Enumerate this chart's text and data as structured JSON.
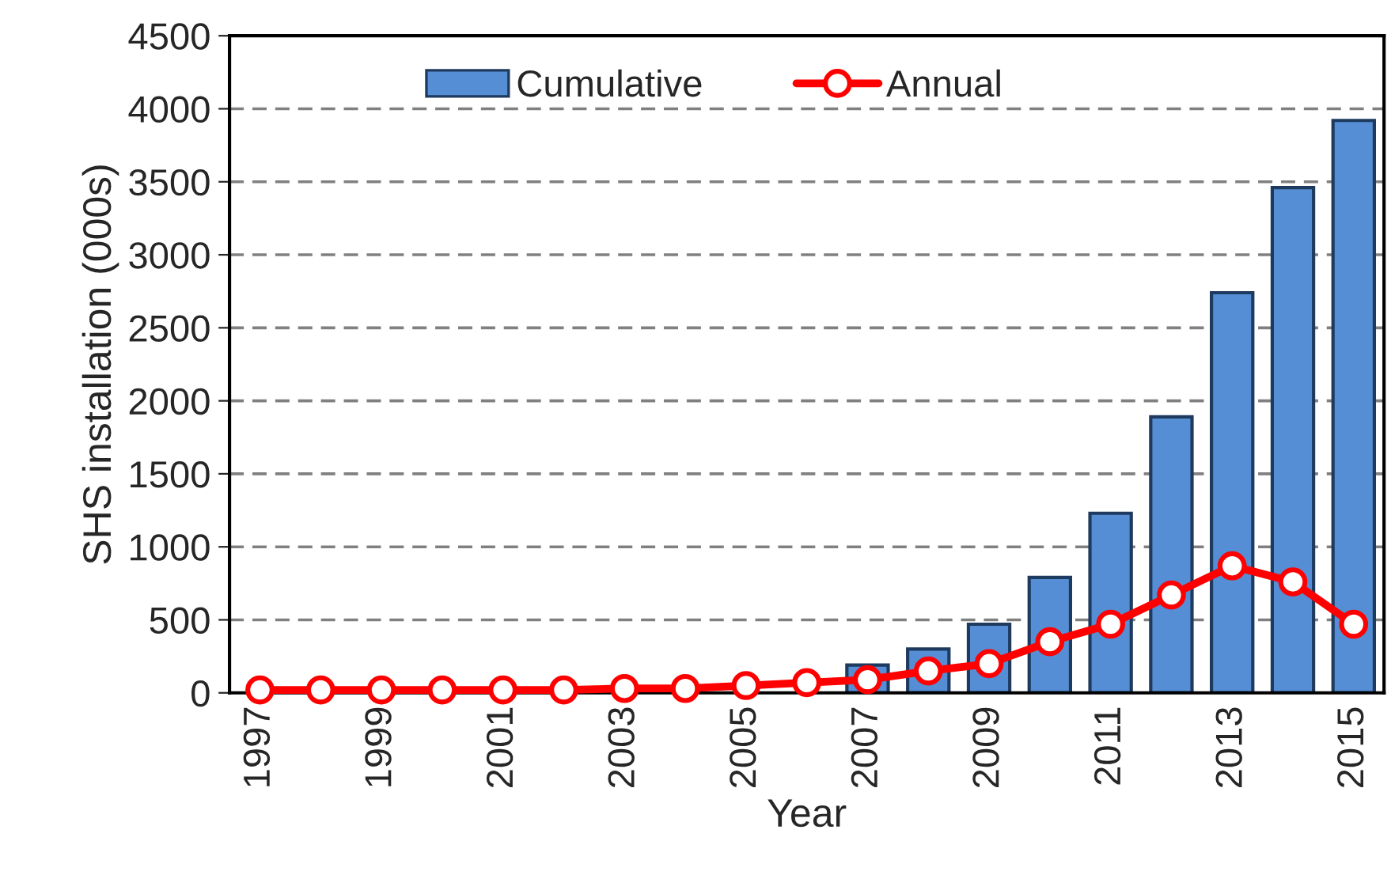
{
  "chart_data": {
    "type": "bar",
    "xlabel": "Year",
    "ylabel": "SHS installation (000s)",
    "categories": [
      "1997",
      null,
      "1999",
      null,
      "2001",
      null,
      "2003",
      null,
      "2005",
      null,
      "2007",
      null,
      "2009",
      null,
      "2011",
      null,
      "2013",
      null,
      "2015"
    ],
    "series": [
      {
        "name": "Cumulative",
        "color": "#558ed5",
        "values": [
          null,
          null,
          null,
          null,
          null,
          null,
          null,
          null,
          null,
          null,
          190,
          300,
          470,
          790,
          1230,
          1890,
          2740,
          3460,
          3920
        ]
      },
      {
        "name": "Annual",
        "type": "line",
        "color": "#ff0000",
        "marker": "circle",
        "values": [
          20,
          20,
          20,
          20,
          20,
          20,
          30,
          30,
          50,
          70,
          90,
          150,
          200,
          350,
          470,
          670,
          870,
          760,
          470
        ]
      }
    ],
    "ylim": [
      0,
      4500
    ],
    "yticks": [
      0,
      500,
      1000,
      1500,
      2000,
      2500,
      3000,
      3500,
      4000,
      4500
    ],
    "grid": "y",
    "legend": "top"
  }
}
